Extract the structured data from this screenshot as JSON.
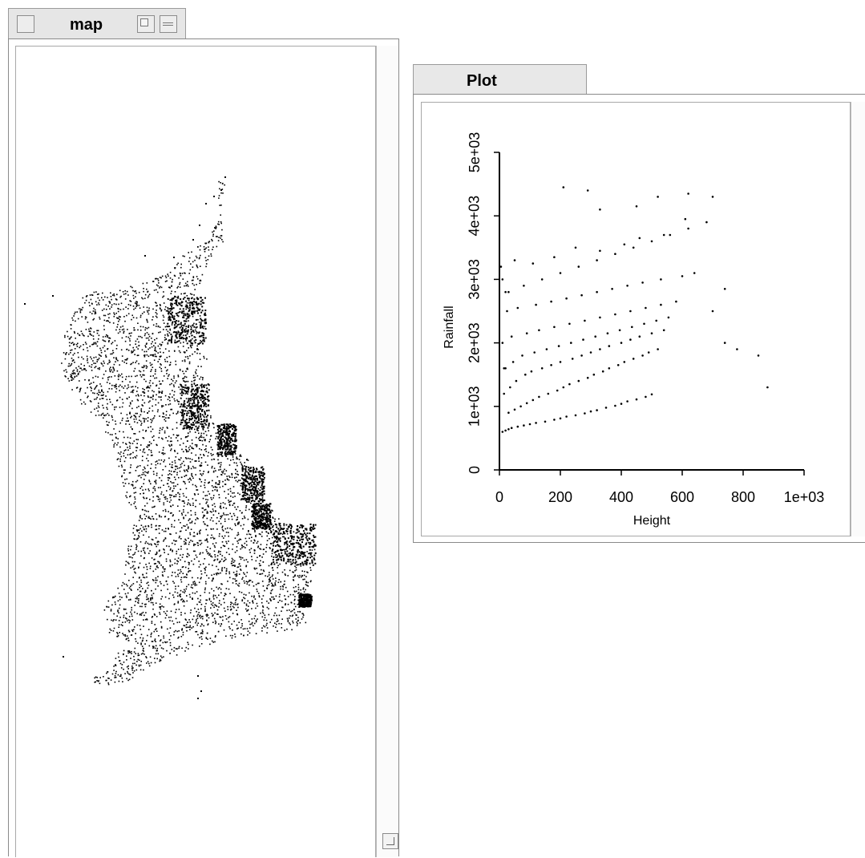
{
  "map_window": {
    "title": "map"
  },
  "plot_window": {
    "title": "Plot"
  },
  "chart_data": {
    "type": "scatter",
    "title": "",
    "xlabel": "Height",
    "ylabel": "Rainfall",
    "xlim": [
      0,
      1000
    ],
    "ylim": [
      0,
      5000
    ],
    "xticks": [
      0,
      200,
      400,
      600,
      800,
      1000
    ],
    "xtick_labels": [
      "0",
      "200",
      "400",
      "600",
      "800",
      "1e+03"
    ],
    "yticks": [
      0,
      1000,
      2000,
      3000,
      4000,
      5000
    ],
    "ytick_labels": [
      "0",
      "1e+03",
      "2e+03",
      "3e+03",
      "4e+03",
      "5e+03"
    ],
    "grid": false,
    "legend": "none",
    "marker_color": "#000000",
    "series": [
      {
        "x": [
          10,
          20,
          30,
          40,
          60,
          80,
          100,
          120,
          150,
          180,
          200,
          220,
          250,
          280,
          300,
          320,
          350,
          380,
          400,
          420,
          450,
          480,
          500,
          30,
          50,
          70,
          90,
          110,
          130,
          160,
          190,
          210,
          230,
          260,
          290,
          310,
          340,
          360,
          390,
          410,
          440,
          470,
          490,
          520,
          15,
          35,
          55,
          85,
          105,
          140,
          170,
          200,
          240,
          270,
          300,
          330,
          360,
          400,
          430,
          460,
          500,
          540,
          20,
          45,
          75,
          115,
          155,
          195,
          235,
          275,
          315,
          355,
          395,
          435,
          475,
          515,
          555,
          10,
          40,
          90,
          130,
          180,
          230,
          280,
          330,
          380,
          430,
          480,
          530,
          580,
          25,
          60,
          120,
          170,
          220,
          270,
          320,
          370,
          420,
          470,
          530,
          600,
          640,
          30,
          80,
          140,
          200,
          260,
          320,
          380,
          440,
          500,
          560,
          620,
          680,
          740,
          5,
          50,
          110,
          180,
          250,
          330,
          410,
          460,
          540,
          610,
          700,
          780,
          850,
          880,
          210,
          290,
          330,
          450,
          520,
          620,
          700,
          740,
          10,
          15,
          20
        ],
        "y": [
          600,
          620,
          640,
          660,
          680,
          700,
          720,
          740,
          760,
          790,
          810,
          840,
          860,
          890,
          920,
          940,
          980,
          1010,
          1040,
          1080,
          1110,
          1150,
          1190,
          900,
          950,
          1000,
          1050,
          1100,
          1150,
          1200,
          1250,
          1300,
          1350,
          1400,
          1450,
          1500,
          1550,
          1600,
          1650,
          1700,
          1750,
          1800,
          1850,
          1900,
          1200,
          1300,
          1400,
          1500,
          1550,
          1600,
          1650,
          1700,
          1750,
          1800,
          1850,
          1900,
          1950,
          2000,
          2050,
          2100,
          2150,
          2200,
          1600,
          1700,
          1800,
          1850,
          1900,
          1950,
          2000,
          2050,
          2100,
          2150,
          2200,
          2250,
          2300,
          2350,
          2400,
          2000,
          2100,
          2150,
          2200,
          2250,
          2300,
          2350,
          2400,
          2450,
          2500,
          2550,
          2600,
          2650,
          2500,
          2550,
          2600,
          2650,
          2700,
          2750,
          2800,
          2850,
          2900,
          2950,
          3000,
          3050,
          3100,
          2800,
          2900,
          3000,
          3100,
          3200,
          3300,
          3400,
          3500,
          3600,
          3700,
          3800,
          3900,
          2850,
          3200,
          3300,
          3250,
          3350,
          3500,
          3450,
          3550,
          3650,
          3700,
          3950,
          2500,
          1900,
          1800,
          1300,
          4450,
          4400,
          4100,
          4150,
          4300,
          4350,
          4300,
          2000,
          3000,
          1600,
          2800
        ]
      }
    ]
  }
}
